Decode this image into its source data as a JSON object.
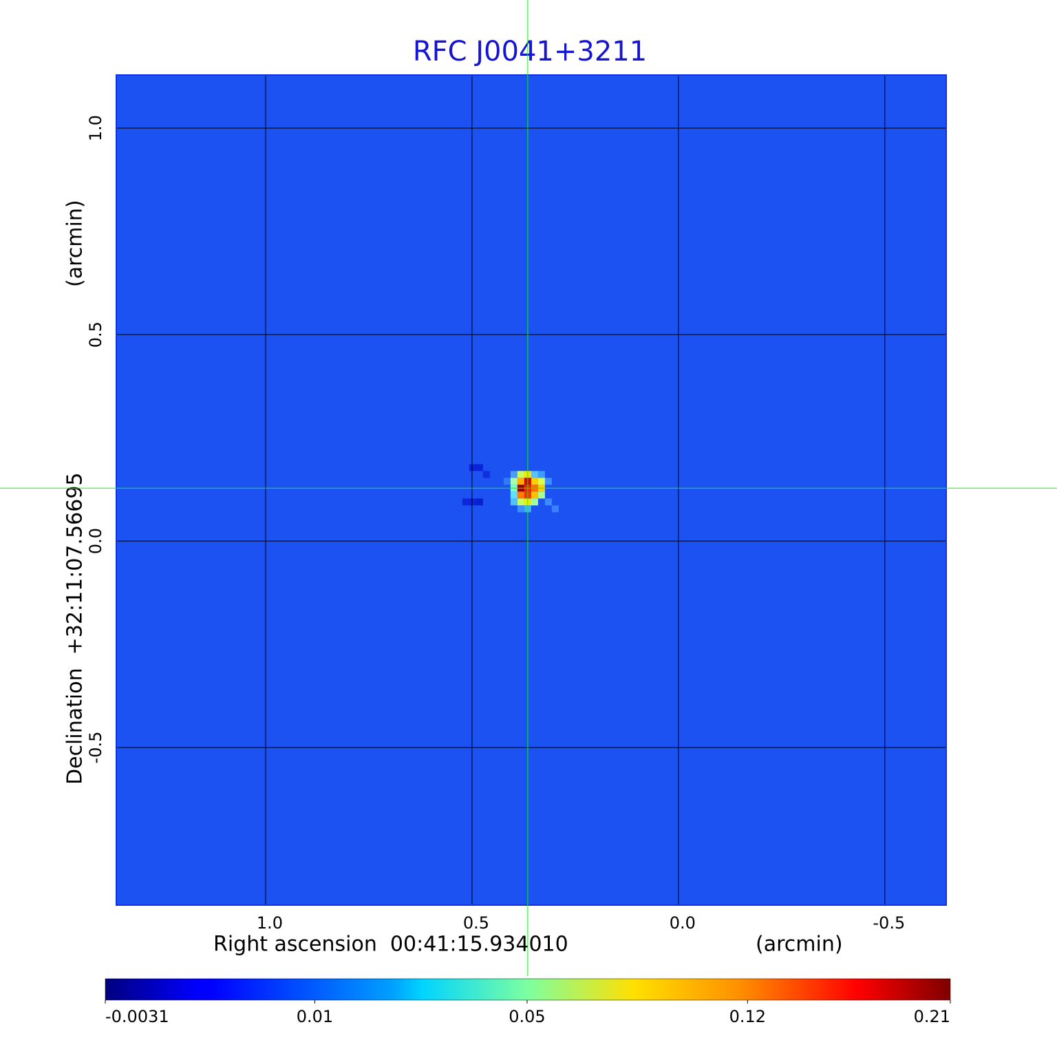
{
  "chart_data": {
    "type": "image",
    "title": "RFC J0041+3211",
    "x_label": "Right ascension  00:41:15.934010",
    "x_unit": "(arcmin)",
    "y_label": "Declination  +32:11:07.56695",
    "y_unit": "(arcmin)",
    "xlim": [
      1.36,
      -0.647
    ],
    "ylim": [
      -0.88,
      1.127
    ],
    "xticks": [
      {
        "value": 1,
        "label": "1.0"
      },
      0.5,
      {
        "value": 0,
        "label": "0.0"
      },
      -0.5
    ],
    "yticks": [
      -0.5,
      {
        "value": 0,
        "label": "0.0"
      },
      0.5,
      {
        "value": 1,
        "label": "1.0"
      }
    ],
    "grid": true,
    "crosshair": {
      "x": 0.365,
      "y": 0.128,
      "color": "#00ff00"
    },
    "colorbar": {
      "clim": [
        -0.0031,
        0.21
      ],
      "scale": "sqrt",
      "colormap": "jet",
      "ticks": [
        -0.0031,
        0.01,
        0.05,
        0.12,
        0.21
      ]
    }
  }
}
